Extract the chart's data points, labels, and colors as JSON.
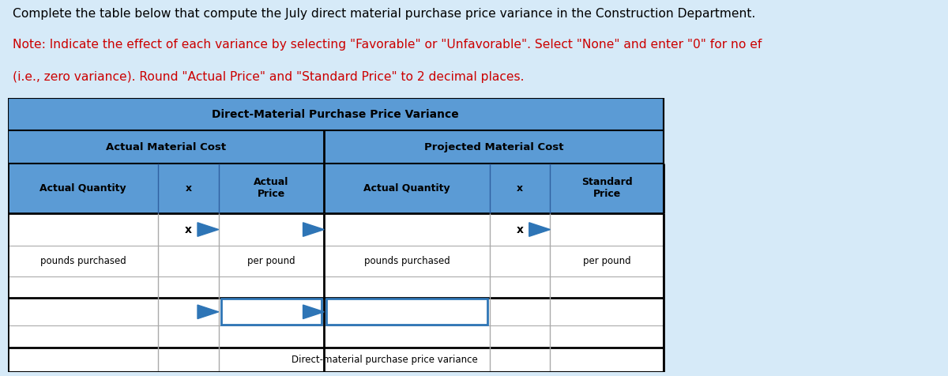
{
  "title_text": "Complete the table below that compute the July direct material purchase price variance in the Construction Department.",
  "note_line1": "Note: Indicate the effect of each variance by selecting \"Favorable\" or \"Unfavorable\". Select \"None\" and enter \"0\" for no ef",
  "note_line2": "(i.e., zero variance). Round \"Actual Price\" and \"Standard Price\" to 2 decimal places.",
  "header_dark_bg": "#4472C4",
  "header_mid_bg": "#5B9BD5",
  "table_bg": "#FFFFFF",
  "fig_bg": "#D6EAF8",
  "text_title_color": "#000000",
  "text_note_color": "#CC0000",
  "table_title": "Direct-Material Purchase Price Variance",
  "left_section_title": "Actual Material Cost",
  "right_section_title": "Projected Material Cost",
  "col_headers": [
    "Actual Quantity",
    "x",
    "Actual\nPrice",
    "Actual Quantity",
    "x",
    "Standard\nPrice"
  ],
  "bottom_label": "Direct-material purchase price variance",
  "arrow_color": "#2E75B6",
  "grid_color_dark": "#000000",
  "grid_color_light": "#AAAAAA",
  "fig_width": 12.0,
  "fig_height": 4.76,
  "dpi": 100
}
